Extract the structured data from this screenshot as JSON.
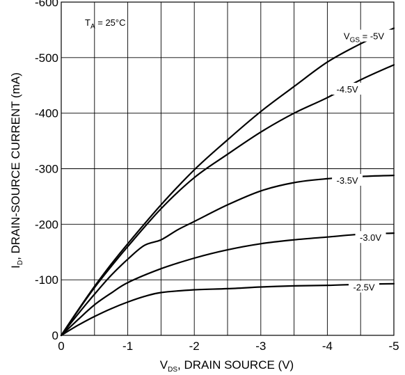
{
  "chart_data": {
    "type": "line",
    "title": "",
    "annotation": {
      "prefix": "T",
      "sub": "A",
      "suffix": " = 25°C"
    },
    "xlabel": {
      "prefix": "V",
      "sub": "DS",
      "suffix": ", DRAIN SOURCE (V)"
    },
    "ylabel": {
      "prefix": "I",
      "sub": "D",
      "suffix": ", DRAIN-SOURCE CURRENT (mA)"
    },
    "xlim": [
      0,
      -5
    ],
    "ylim": [
      0,
      -600
    ],
    "grid": true,
    "x_ticks": [
      0,
      -0.5,
      -1,
      -1.5,
      -2,
      -2.5,
      -3,
      -3.5,
      -4,
      -4.5,
      -5
    ],
    "x_tick_labels": [
      {
        "value": 0,
        "label": "0"
      },
      {
        "value": -1,
        "label": "-1"
      },
      {
        "value": -2,
        "label": "-2"
      },
      {
        "value": -3,
        "label": "-3"
      },
      {
        "value": -4,
        "label": "-4"
      },
      {
        "value": -5,
        "label": "-5"
      }
    ],
    "y_tick_labels": [
      {
        "value": 0,
        "label": "0"
      },
      {
        "value": -100,
        "label": "-100"
      },
      {
        "value": -200,
        "label": "-200"
      },
      {
        "value": -300,
        "label": "-300"
      },
      {
        "value": -400,
        "label": "-400"
      },
      {
        "value": -500,
        "label": "-500"
      },
      {
        "value": -600,
        "label": "-600"
      }
    ],
    "series": [
      {
        "name": "V_GS = -5V",
        "label": {
          "prefix": "V",
          "sub": "GS",
          "suffix": " = -5V"
        },
        "x": [
          0,
          -0.25,
          -0.5,
          -0.75,
          -1,
          -1.5,
          -2,
          -2.5,
          -3,
          -3.5,
          -4,
          -4.5,
          -5
        ],
        "y": [
          0,
          -45,
          -88,
          -128,
          -165,
          -235,
          -298,
          -352,
          -403,
          -448,
          -492,
          -525,
          -553
        ]
      },
      {
        "name": "-4.5V",
        "label": {
          "prefix": "-4.5V",
          "sub": "",
          "suffix": ""
        },
        "x": [
          0,
          -0.25,
          -0.5,
          -0.75,
          -1,
          -1.5,
          -2,
          -2.5,
          -3,
          -3.5,
          -4,
          -4.5,
          -5
        ],
        "y": [
          0,
          -44,
          -86,
          -124,
          -160,
          -228,
          -284,
          -326,
          -366,
          -400,
          -428,
          -460,
          -487
        ]
      },
      {
        "name": "-3.5V",
        "label": {
          "prefix": "-3.5V",
          "sub": "",
          "suffix": ""
        },
        "x": [
          0,
          -0.25,
          -0.5,
          -0.75,
          -1,
          -1.25,
          -1.5,
          -1.75,
          -2,
          -2.5,
          -3,
          -3.5,
          -4,
          -4.5,
          -5
        ],
        "y": [
          0,
          -38,
          -74,
          -108,
          -137,
          -162,
          -172,
          -190,
          -205,
          -235,
          -260,
          -275,
          -282,
          -286,
          -288
        ]
      },
      {
        "name": "-3.0V",
        "label": {
          "prefix": "-3.0V",
          "sub": "",
          "suffix": ""
        },
        "x": [
          0,
          -0.25,
          -0.5,
          -0.75,
          -1,
          -1.5,
          -2,
          -2.5,
          -3,
          -3.5,
          -4,
          -4.5,
          -5
        ],
        "y": [
          0,
          -28,
          -55,
          -76,
          -95,
          -120,
          -139,
          -154,
          -165,
          -172,
          -177,
          -182,
          -184
        ]
      },
      {
        "name": "-2.5V",
        "label": {
          "prefix": "-2.5V",
          "sub": "",
          "suffix": ""
        },
        "x": [
          0,
          -0.25,
          -0.5,
          -0.75,
          -1,
          -1.25,
          -1.5,
          -2,
          -2.5,
          -3,
          -3.5,
          -4,
          -4.5,
          -5
        ],
        "y": [
          0,
          -18,
          -34,
          -48,
          -60,
          -70,
          -77,
          -82,
          -84,
          -87,
          -89,
          -90,
          -92,
          -93
        ]
      }
    ]
  }
}
